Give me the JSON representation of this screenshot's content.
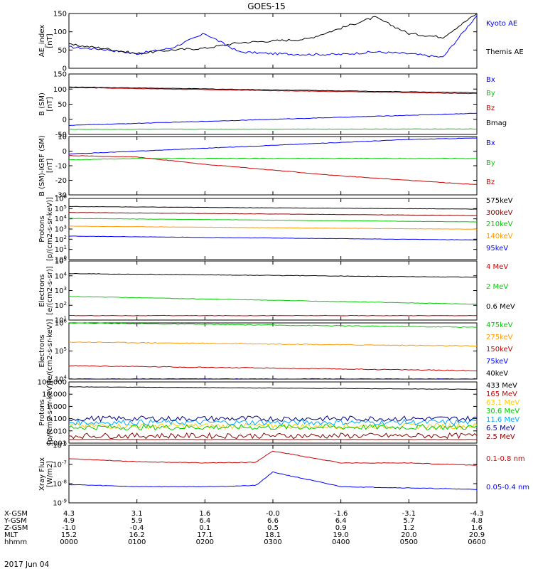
{
  "title": "GOES-15",
  "date_label": "2017 Jun 04",
  "x_axis": {
    "row_labels": [
      "X-GSM",
      "Y-GSM",
      "Z-GSM",
      "MLT",
      "hhmm"
    ],
    "columns": [
      [
        "4.3",
        "4.9",
        "-1.0",
        "15.2",
        "0000"
      ],
      [
        "3.1",
        "5.9",
        "-0.4",
        "16.2",
        "0100"
      ],
      [
        "1.6",
        "6.4",
        "0.1",
        "17.1",
        "0200"
      ],
      [
        "-0.0",
        "6.6",
        "0.5",
        "18.1",
        "0300"
      ],
      [
        "-1.6",
        "6.4",
        "0.9",
        "19.0",
        "0400"
      ],
      [
        "-3.1",
        "5.7",
        "1.2",
        "20.0",
        "0500"
      ],
      [
        "-4.3",
        "4.8",
        "1.6",
        "20.9",
        "0600"
      ]
    ]
  },
  "chart_data": [
    {
      "type": "line",
      "ylabel": "AE_index [nT]",
      "ylim": [
        0,
        150
      ],
      "yticks": [
        "0",
        "50",
        "100",
        "150"
      ],
      "x": [
        "0000",
        "0030",
        "0100",
        "0130",
        "0200",
        "0230",
        "0300",
        "0330",
        "0400",
        "0430",
        "0500",
        "0530",
        "0600"
      ],
      "series": [
        {
          "name": "Kyoto AE",
          "color": "#0000ff",
          "values": [
            58,
            52,
            40,
            55,
            95,
            45,
            40,
            38,
            38,
            45,
            40,
            30,
            145
          ]
        },
        {
          "name": "Themis AE",
          "color": "#000000",
          "values": [
            65,
            55,
            40,
            50,
            55,
            70,
            75,
            80,
            110,
            140,
            95,
            85,
            150
          ]
        }
      ]
    },
    {
      "type": "line",
      "ylabel": "B (SM) [nT]",
      "ylim": [
        -50,
        150
      ],
      "yticks": [
        "-50",
        "0",
        "50",
        "100",
        "150"
      ],
      "x": [
        "0000",
        "0600"
      ],
      "series": [
        {
          "name": "Bx",
          "color": "#0000ff",
          "values": [
            -20,
            20
          ]
        },
        {
          "name": "By",
          "color": "#00cc00",
          "values": [
            -33,
            -32
          ]
        },
        {
          "name": "Bz",
          "color": "#cc0000",
          "values": [
            105,
            85
          ]
        },
        {
          "name": "Bmag",
          "color": "#000000",
          "values": [
            107,
            88
          ]
        }
      ]
    },
    {
      "type": "line",
      "ylabel": "B (SM)-IGRF (SM) [nT]",
      "ylim": [
        -30,
        10
      ],
      "yticks": [
        "-30",
        "-20",
        "-10",
        "0",
        "10"
      ],
      "x": [
        "0000",
        "0100",
        "0200",
        "0300",
        "0400",
        "0500",
        "0600"
      ],
      "series": [
        {
          "name": "Bx",
          "color": "#0000ff",
          "values": [
            -2,
            0,
            2,
            4,
            6,
            8,
            9
          ]
        },
        {
          "name": "By",
          "color": "#00cc00",
          "values": [
            -6,
            -5,
            -5,
            -5,
            -5,
            -5,
            -5
          ]
        },
        {
          "name": "Bz",
          "color": "#cc0000",
          "values": [
            -3,
            -4,
            -9,
            -13,
            -17,
            -20,
            -23
          ]
        }
      ]
    },
    {
      "type": "line",
      "ylabel": "Protons [p/(cm2-s-sr-keV)]",
      "log_scale": true,
      "ylim": [
        1,
        1000000
      ],
      "yticks": [
        "10^0",
        "10^1",
        "10^2",
        "10^3",
        "10^4",
        "10^5",
        "10^6"
      ],
      "x": [
        "0000",
        "0600"
      ],
      "series": [
        {
          "name": "575keV",
          "color": "#000000",
          "values": [
            160000,
            90000
          ]
        },
        {
          "name": "300keV",
          "color": "#8b0000",
          "values": [
            42000,
            21000
          ]
        },
        {
          "name": "210keV",
          "color": "#00cc00",
          "values": [
            11000,
            5000
          ]
        },
        {
          "name": "140keV",
          "color": "#ff9900",
          "values": [
            1900,
            950
          ]
        },
        {
          "name": "95keV",
          "color": "#0000ff",
          "values": [
            200,
            85
          ]
        }
      ]
    },
    {
      "type": "line",
      "ylabel": "Electrons [e/(cm2-s-sr)]",
      "log_scale": true,
      "ylim": [
        10,
        100000
      ],
      "yticks": [
        "10^1",
        "10^2",
        "10^3",
        "10^4",
        "10^5"
      ],
      "x": [
        "0000",
        "0600"
      ],
      "series": [
        {
          "name": "4 MeV",
          "color": "#cc0000",
          "values": [
            20,
            20
          ]
        },
        {
          "name": "2 MeV",
          "color": "#00cc00",
          "values": [
            400,
            120
          ]
        },
        {
          "name": "0.6 MeV",
          "color": "#000000",
          "values": [
            14000,
            8000
          ]
        }
      ]
    },
    {
      "type": "line",
      "ylabel": "Electrons [e/(cm2-s-sr-keV)]",
      "log_scale": true,
      "ylim": [
        10000,
        1000000
      ],
      "yticks": [
        "10^4",
        "10^5",
        "10^6"
      ],
      "x": [
        "0000",
        "0600"
      ],
      "series": [
        {
          "name": "475keV",
          "color": "#00cc00",
          "values": [
            1000000,
            700000
          ]
        },
        {
          "name": "275keV",
          "color": "#ff9900",
          "values": [
            210000,
            150000
          ]
        },
        {
          "name": "150keV",
          "color": "#cc0000",
          "values": [
            30000,
            20000
          ]
        },
        {
          "name": "75keV",
          "color": "#0000ff",
          "values": [
            10000,
            10000
          ]
        },
        {
          "name": "40keV",
          "color": "#000000",
          "values": [
            10000,
            10000
          ]
        }
      ]
    },
    {
      "type": "line",
      "ylabel": "Protons [p/(cm2-s-sr-keV)]",
      "log_scale": true,
      "ylim": [
        0.001,
        100
      ],
      "yticks": [
        "0.001",
        "0.010",
        "0.100",
        "1.000",
        "10.000",
        "100.000"
      ],
      "x": [
        "0000",
        "0600"
      ],
      "series": [
        {
          "name": "433 MeV",
          "color": "#000000",
          "values": [
            40,
            25
          ]
        },
        {
          "name": "165 MeV",
          "color": "#cc0000",
          "values": [
            0.002,
            0.002
          ]
        },
        {
          "name": "63.1 MeV",
          "color": "#ffcc00",
          "values": [
            0.025,
            0.025
          ]
        },
        {
          "name": "30.6 MeV",
          "color": "#00cc00",
          "values": [
            0.02,
            0.02
          ]
        },
        {
          "name": "11.6 MeV",
          "color": "#00aaff",
          "values": [
            0.05,
            0.05
          ]
        },
        {
          "name": "6.5 MeV",
          "color": "#000080",
          "values": [
            0.1,
            0.1
          ]
        },
        {
          "name": "2.5 MeV",
          "color": "#8b0000",
          "values": [
            0.004,
            0.004
          ]
        }
      ]
    },
    {
      "type": "line",
      "ylabel": "Xray Flux [W/m2]",
      "log_scale": true,
      "ylim": [
        1e-09,
        1e-06
      ],
      "yticks": [
        "10^-9",
        "10^-8",
        "10^-7",
        "10^-6"
      ],
      "x": [
        "0000",
        "0100",
        "0200",
        "0245",
        "0300",
        "0400",
        "0500",
        "0600"
      ],
      "series": [
        {
          "name": "0.1-0.8 nm",
          "color": "#cc0000",
          "values": [
            2e-07,
            1.4e-07,
            1.2e-07,
            1.3e-07,
            5e-07,
            1.2e-07,
            1.2e-07,
            9e-08
          ]
        },
        {
          "name": "0.05-0.4 nm",
          "color": "#0000ff",
          "values": [
            9e-09,
            7e-09,
            7e-09,
            8e-09,
            4e-08,
            7e-09,
            6e-09,
            5e-09
          ]
        }
      ]
    }
  ]
}
